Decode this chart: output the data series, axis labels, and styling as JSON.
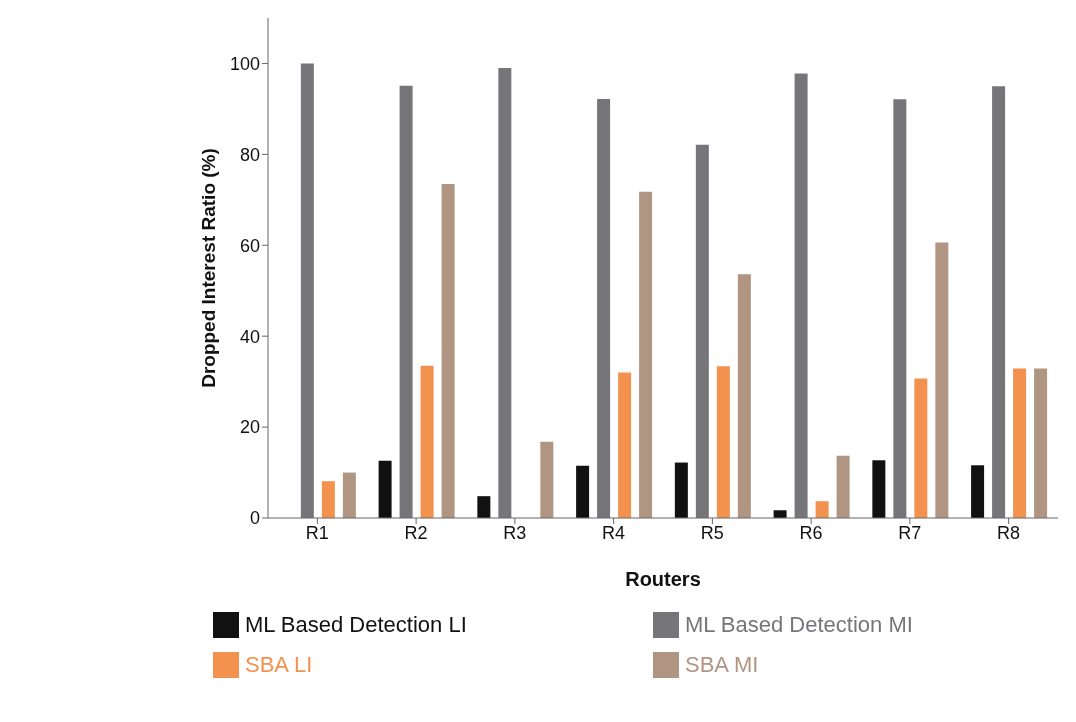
{
  "chart_data": {
    "type": "bar",
    "xlabel": "Routers",
    "ylabel": "Dropped Interest Ratio (%)",
    "categories": [
      "R1",
      "R2",
      "R3",
      "R4",
      "R5",
      "R6",
      "R7",
      "R8"
    ],
    "series": [
      {
        "name": "ML Based Detection LI",
        "color": "#111111",
        "values": [
          0,
          12.6,
          4.8,
          11.5,
          12.2,
          1.7,
          12.7,
          11.6
        ]
      },
      {
        "name": "ML Based Detection MI",
        "color": "#76767a",
        "values": [
          100,
          95.1,
          99,
          92.2,
          82.1,
          97.8,
          92.1,
          95
        ]
      },
      {
        "name": "SBA LI",
        "color": "#f3914f",
        "values": [
          8.1,
          33.5,
          0,
          32,
          33.4,
          3.7,
          30.7,
          32.9
        ]
      },
      {
        "name": "SBA MI",
        "color": "#b09582",
        "values": [
          10,
          73.5,
          16.8,
          71.8,
          53.6,
          13.7,
          60.6,
          32.9
        ]
      }
    ],
    "ylim": [
      0,
      110
    ],
    "yticks": [
      0,
      20,
      40,
      60,
      80,
      100
    ],
    "grid": false,
    "legend": "bottom"
  }
}
